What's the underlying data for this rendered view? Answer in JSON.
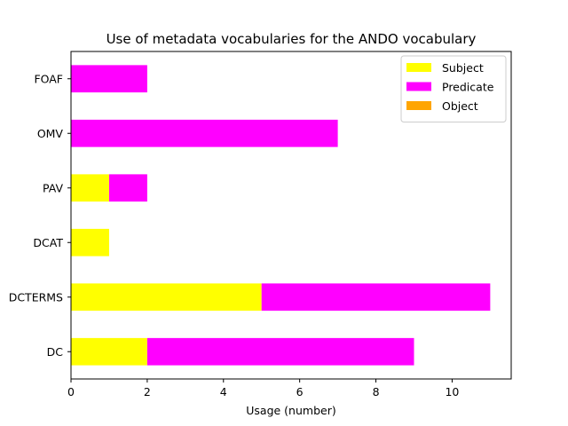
{
  "chart_data": {
    "type": "bar",
    "orientation": "horizontal",
    "stacked": true,
    "title": "Use of metadata vocabularies for the ANDO vocabulary",
    "xlabel": "Usage (number)",
    "ylabel": "",
    "categories": [
      "DC",
      "DCTERMS",
      "DCAT",
      "PAV",
      "OMV",
      "FOAF"
    ],
    "series": [
      {
        "name": "Subject",
        "color": "#ffff00",
        "values": [
          2,
          5,
          1,
          1,
          0,
          0
        ]
      },
      {
        "name": "Predicate",
        "color": "#ff00ff",
        "values": [
          7,
          6,
          0,
          1,
          7,
          2
        ]
      },
      {
        "name": "Object",
        "color": "#ffa500",
        "values": [
          0,
          0,
          0,
          0,
          0,
          0
        ]
      }
    ],
    "xlim": [
      0,
      11.55
    ],
    "xticks": [
      0,
      2,
      4,
      6,
      8,
      10
    ],
    "grid": false,
    "legend_position": "top-right"
  }
}
